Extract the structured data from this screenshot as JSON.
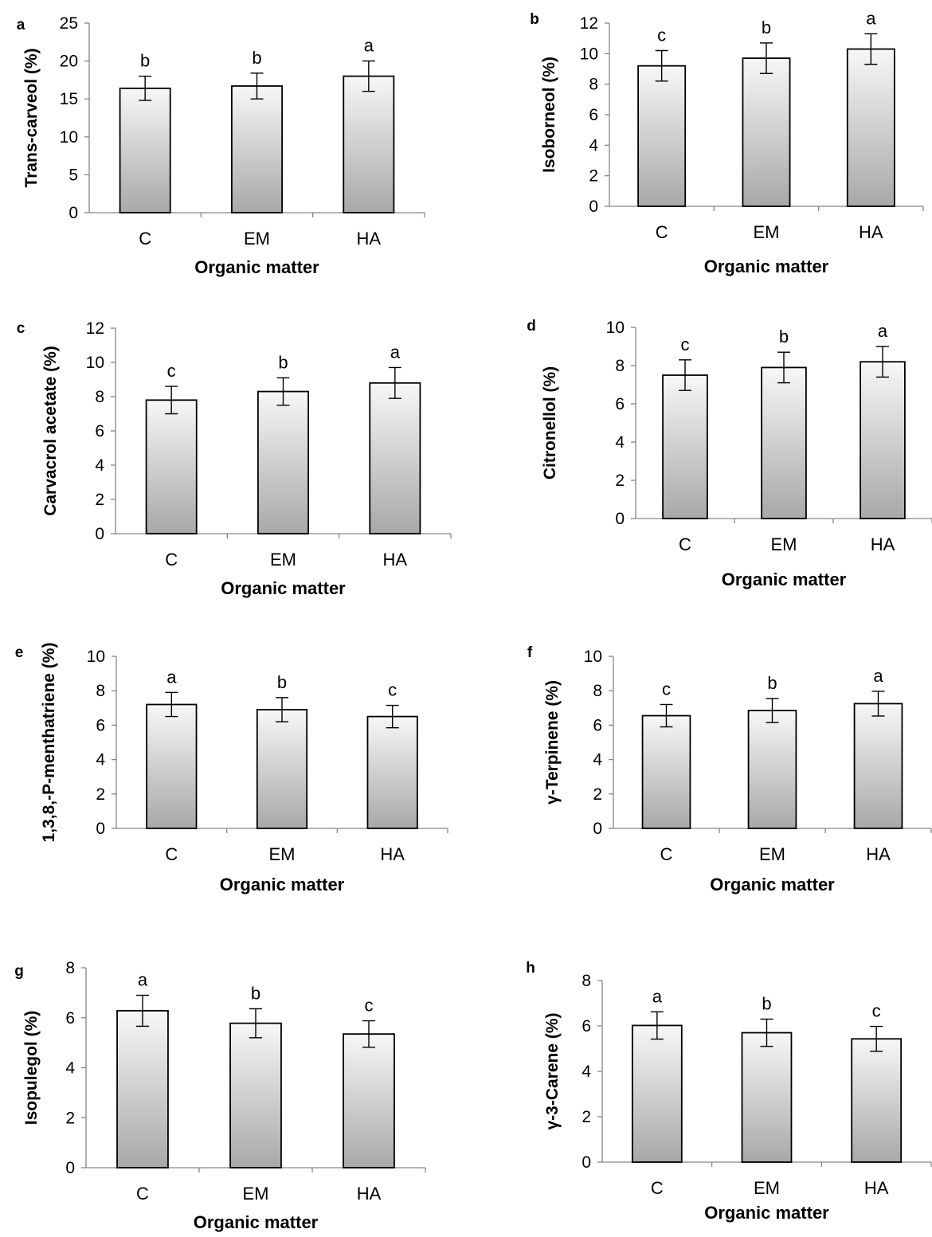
{
  "chart_data": [
    {
      "panel": "a",
      "type": "bar",
      "categories": [
        "C",
        "EM",
        "HA"
      ],
      "values": [
        16.4,
        16.7,
        18.0
      ],
      "errors": [
        1.6,
        1.7,
        2.0
      ],
      "significance": [
        "b",
        "b",
        "a"
      ],
      "ylabel": "Trans-carveol (%)",
      "xlabel": "Organic matter",
      "ylim": [
        0,
        25
      ],
      "yticks": [
        0,
        5,
        10,
        15,
        20,
        25
      ],
      "grid": false
    },
    {
      "panel": "b",
      "type": "bar",
      "categories": [
        "C",
        "EM",
        "HA"
      ],
      "values": [
        9.2,
        9.7,
        10.3
      ],
      "errors": [
        1.0,
        1.0,
        1.0
      ],
      "significance": [
        "c",
        "b",
        "a"
      ],
      "ylabel": "Isoborneol (%)",
      "xlabel": "Organic matter",
      "ylim": [
        0,
        12
      ],
      "yticks": [
        0,
        2,
        4,
        6,
        8,
        10,
        12
      ],
      "grid": false
    },
    {
      "panel": "c",
      "type": "bar",
      "categories": [
        "C",
        "EM",
        "HA"
      ],
      "values": [
        7.8,
        8.3,
        8.8
      ],
      "errors": [
        0.8,
        0.8,
        0.9
      ],
      "significance": [
        "c",
        "b",
        "a"
      ],
      "ylabel": "Carvacrol acetate (%)",
      "xlabel": "Organic matter",
      "ylim": [
        0,
        12
      ],
      "yticks": [
        0,
        2,
        4,
        6,
        8,
        10,
        12
      ],
      "grid": false
    },
    {
      "panel": "d",
      "type": "bar",
      "categories": [
        "C",
        "EM",
        "HA"
      ],
      "values": [
        7.5,
        7.9,
        8.2
      ],
      "errors": [
        0.8,
        0.8,
        0.8
      ],
      "significance": [
        "c",
        "b",
        "a"
      ],
      "ylabel": "Citronellol (%)",
      "xlabel": "Organic matter",
      "ylim": [
        0,
        10
      ],
      "yticks": [
        0,
        2,
        4,
        6,
        8,
        10
      ],
      "grid": false
    },
    {
      "panel": "e",
      "type": "bar",
      "categories": [
        "C",
        "EM",
        "HA"
      ],
      "values": [
        7.2,
        6.9,
        6.5
      ],
      "errors": [
        0.7,
        0.7,
        0.65
      ],
      "significance": [
        "a",
        "b",
        "c"
      ],
      "ylabel": "1,3,8,-P-menthatriene (%)",
      "xlabel": "Organic matter",
      "ylim": [
        0,
        10
      ],
      "yticks": [
        0,
        2,
        4,
        6,
        8,
        10
      ],
      "grid": false
    },
    {
      "panel": "f",
      "type": "bar",
      "categories": [
        "C",
        "EM",
        "HA"
      ],
      "values": [
        6.55,
        6.85,
        7.25
      ],
      "errors": [
        0.65,
        0.7,
        0.72
      ],
      "significance": [
        "c",
        "b",
        "a"
      ],
      "ylabel": "γ-Terpinene (%)",
      "xlabel": "Organic matter",
      "ylim": [
        0,
        10
      ],
      "yticks": [
        0,
        2,
        4,
        6,
        8,
        10
      ],
      "grid": false
    },
    {
      "panel": "g",
      "type": "bar",
      "categories": [
        "C",
        "EM",
        "HA"
      ],
      "values": [
        6.28,
        5.78,
        5.35
      ],
      "errors": [
        0.62,
        0.58,
        0.53
      ],
      "significance": [
        "a",
        "b",
        "c"
      ],
      "ylabel": "Isopulegol (%)",
      "xlabel": "Organic matter",
      "ylim": [
        0,
        8
      ],
      "yticks": [
        0,
        2,
        4,
        6,
        8
      ],
      "grid": false
    },
    {
      "panel": "h",
      "type": "bar",
      "categories": [
        "C",
        "EM",
        "HA"
      ],
      "values": [
        6.02,
        5.7,
        5.43
      ],
      "errors": [
        0.6,
        0.6,
        0.55
      ],
      "significance": [
        "a",
        "b",
        "c"
      ],
      "ylabel": "γ-3-Carene (%)",
      "xlabel": "Organic matter",
      "ylim": [
        0,
        8
      ],
      "yticks": [
        0,
        2,
        4,
        6,
        8
      ],
      "grid": false
    }
  ],
  "colors": {
    "axis": "#868686",
    "bar_outline": "#000000",
    "bar_top": "#f7f7f7",
    "bar_bottom": "#a8a8a8",
    "error_bar": "#000000"
  }
}
